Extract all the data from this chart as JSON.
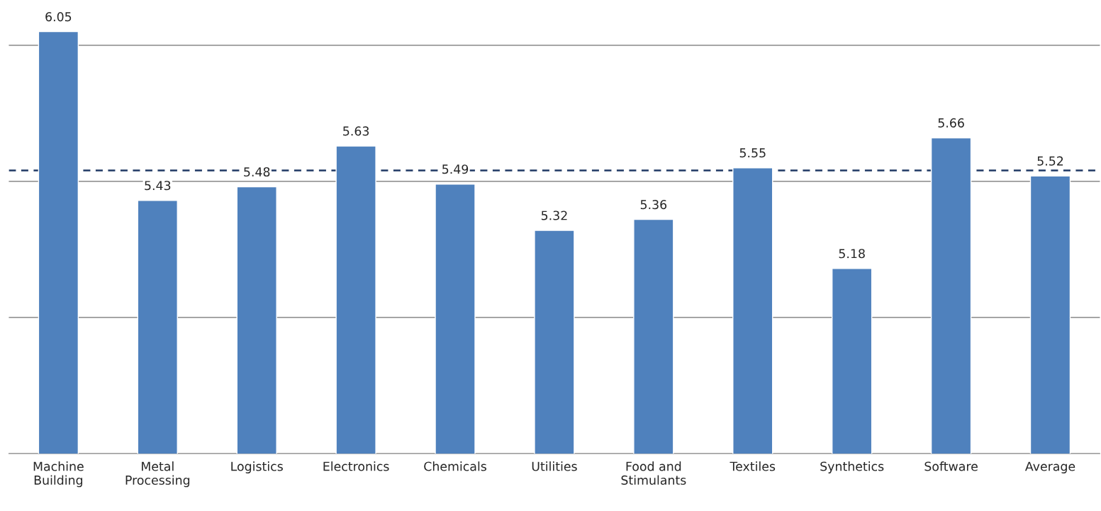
{
  "chart_data": {
    "type": "bar",
    "categories": [
      "Machine\nBuilding",
      "Metal\nProcessing",
      "Logistics",
      "Electronics",
      "Chemicals",
      "Utilities",
      "Food and\nStimulants",
      "Textiles",
      "Synthetics",
      "Software",
      "Average"
    ],
    "values": [
      6.05,
      5.43,
      5.48,
      5.63,
      5.49,
      5.32,
      5.36,
      5.55,
      5.18,
      5.66,
      5.52
    ],
    "color": "#4f81bd",
    "yticks": [
      {
        "value": 4.5,
        "label": null
      },
      {
        "value": 5,
        "label": null
      },
      {
        "value": 5.5,
        "label": null
      },
      {
        "value": 6,
        "label": null
      }
    ],
    "tick_labels": "x",
    "grid": "y",
    "data_labels": true,
    "ref_lines": [
      {
        "axis": "y",
        "value": 5.54,
        "color": "#1f3864",
        "line_style": "dashed"
      }
    ]
  }
}
